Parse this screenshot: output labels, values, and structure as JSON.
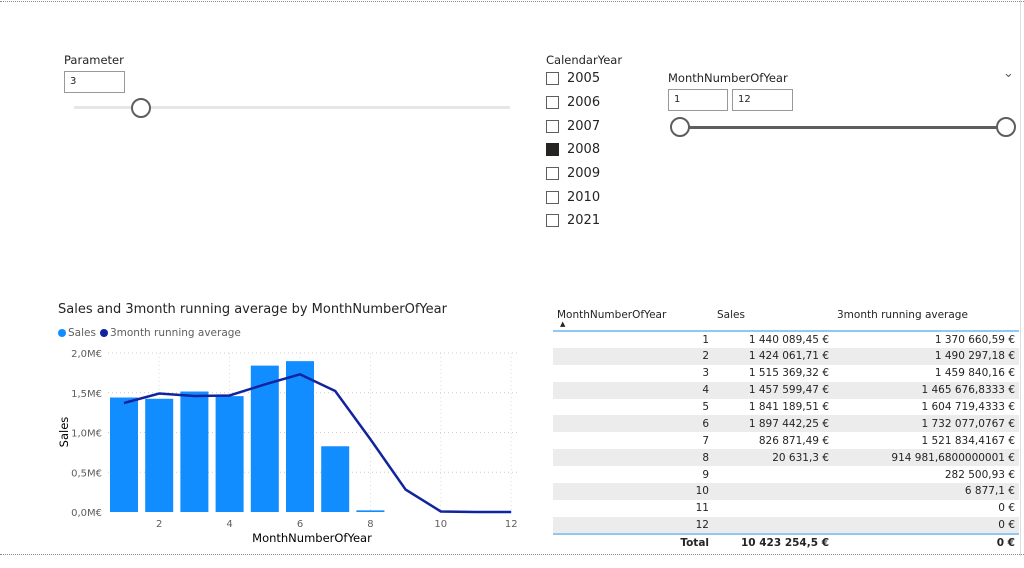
{
  "parameter": {
    "label": "Parameter",
    "value": "3",
    "slider_fraction": 0.15
  },
  "calendar_year": {
    "label": "CalendarYear",
    "options": [
      {
        "year": "2005",
        "checked": false
      },
      {
        "year": "2006",
        "checked": false
      },
      {
        "year": "2007",
        "checked": false
      },
      {
        "year": "2008",
        "checked": true
      },
      {
        "year": "2009",
        "checked": false
      },
      {
        "year": "2010",
        "checked": false
      },
      {
        "year": "2021",
        "checked": false
      }
    ]
  },
  "month_slicer": {
    "label": "MonthNumberOfYear",
    "min": "1",
    "max": "12"
  },
  "chart_data": {
    "type": "bar+line",
    "title": "Sales and 3month running average by MonthNumberOfYear",
    "xlabel": "MonthNumberOfYear",
    "ylabel": "Sales",
    "ylim": [
      0,
      2000000
    ],
    "yticks": [
      "0,0M€",
      "0,5M€",
      "1,0M€",
      "1,5M€",
      "2,0M€"
    ],
    "xticks": [
      "2",
      "4",
      "6",
      "8",
      "10",
      "12"
    ],
    "x": [
      1,
      2,
      3,
      4,
      5,
      6,
      7,
      8,
      9,
      10,
      11,
      12
    ],
    "series": [
      {
        "name": "Sales",
        "type": "bar",
        "color": "#118dff",
        "values": [
          1440089.45,
          1424061.71,
          1515369.32,
          1457599.47,
          1841189.51,
          1897442.25,
          826871.49,
          20631.3,
          null,
          null,
          null,
          null
        ]
      },
      {
        "name": "3month running average",
        "type": "line",
        "color": "#12239e",
        "values": [
          1370660.59,
          1490297.18,
          1459840.16,
          1465676.8333,
          1604719.4333,
          1732077.0767,
          1521834.4167,
          914981.68,
          282500.93,
          6877.1,
          0,
          0
        ]
      }
    ],
    "legend": "top-left",
    "grid": true
  },
  "table": {
    "headers": [
      "MonthNumberOfYear",
      "Sales",
      "3month running average"
    ],
    "rows": [
      [
        "1",
        "1 440 089,45 €",
        "1 370 660,59 €"
      ],
      [
        "2",
        "1 424 061,71 €",
        "1 490 297,18 €"
      ],
      [
        "3",
        "1 515 369,32 €",
        "1 459 840,16 €"
      ],
      [
        "4",
        "1 457 599,47 €",
        "1 465 676,8333 €"
      ],
      [
        "5",
        "1 841 189,51 €",
        "1 604 719,4333 €"
      ],
      [
        "6",
        "1 897 442,25 €",
        "1 732 077,0767 €"
      ],
      [
        "7",
        "826 871,49 €",
        "1 521 834,4167 €"
      ],
      [
        "8",
        "20 631,3 €",
        "914 981,6800000001 €"
      ],
      [
        "9",
        "",
        "282 500,93 €"
      ],
      [
        "10",
        "",
        "6 877,1 €"
      ],
      [
        "11",
        "",
        "0 €"
      ],
      [
        "12",
        "",
        "0 €"
      ]
    ],
    "total": [
      "Total",
      "10 423 254,5 €",
      "0 €"
    ]
  }
}
